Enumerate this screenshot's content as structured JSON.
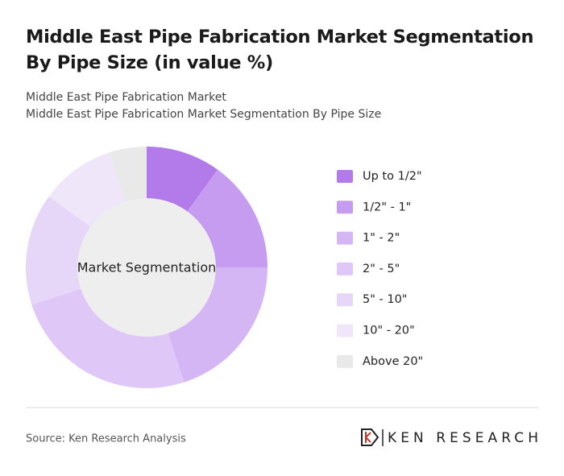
{
  "chart_data": {
    "type": "donut",
    "title": "Middle East Pipe Fabrication Market Segmentation By Pipe Size (in value %)",
    "subtitle_lines": [
      "Middle East Pipe Fabrication Market",
      "Middle East Pipe Fabrication Market Segmentation By Pipe Size"
    ],
    "center_label": "Market Segmentation",
    "categories": [
      "Up to 1/2\"",
      "1/2\" - 1\"",
      "1\" - 2\"",
      "2\" - 5\"",
      "5\" - 10\"",
      "10\" - 20\"",
      "Above 20\""
    ],
    "values": [
      10,
      15,
      20,
      25,
      15,
      10,
      5
    ],
    "colors": [
      "#b27be9",
      "#c59cf0",
      "#d5b6f5",
      "#dfc8f7",
      "#e6d6f8",
      "#efe6fa",
      "#e9e9e9"
    ]
  },
  "footer": {
    "source": "Source: Ken Research Analysis",
    "logo": "KEN RESEARCH"
  }
}
